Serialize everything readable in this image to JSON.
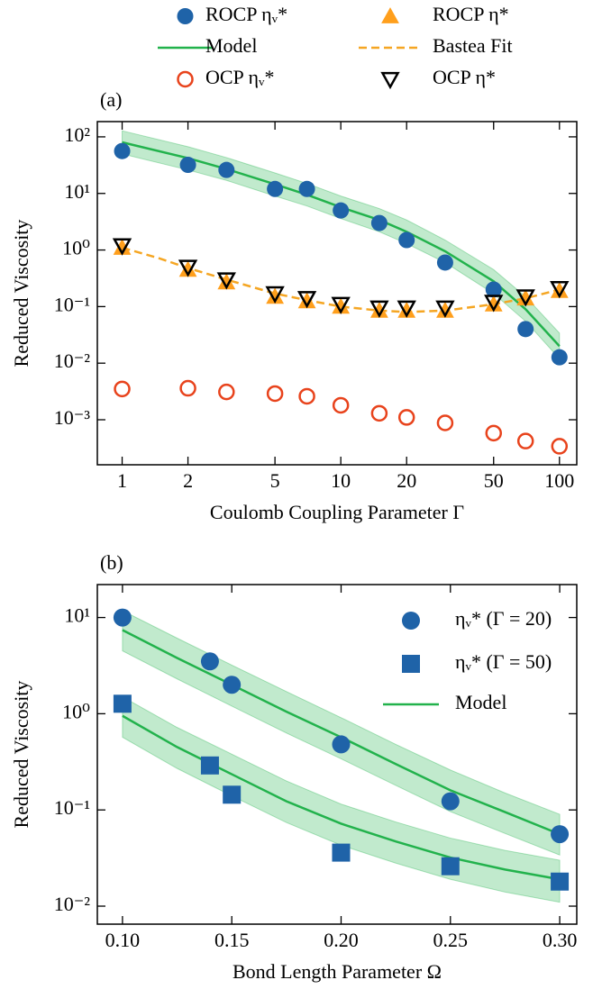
{
  "chart_data": [
    {
      "type": "scatter",
      "annotation": "(a)",
      "xlabel": "Coulomb Coupling Parameter Γ",
      "ylabel": "Reduced Viscosity",
      "xscale": "log",
      "yscale": "log",
      "xlim": [
        0.77,
        120
      ],
      "ylim": [
        0.00016,
        186
      ],
      "xticks": [
        1,
        2,
        5,
        10,
        20,
        50,
        100
      ],
      "yticks": [
        {
          "value": 0.001,
          "label": "10⁻³"
        },
        {
          "value": 0.01,
          "label": "10⁻²"
        },
        {
          "value": 0.1,
          "label": "10⁻¹"
        },
        {
          "value": 1,
          "label": "10⁰"
        },
        {
          "value": 10,
          "label": "10¹"
        },
        {
          "value": 100,
          "label": "10²"
        }
      ],
      "legend": "above",
      "grid": false,
      "series": [
        {
          "name": "ROCP ηᵥ*",
          "color": "#1f63a8",
          "marker": "circle",
          "line": "none",
          "x": [
            1,
            2,
            3,
            5,
            7,
            10,
            15,
            20,
            30,
            50,
            70,
            100
          ],
          "values": [
            56,
            32,
            26,
            12,
            12,
            5,
            3,
            1.5,
            0.6,
            0.2,
            0.04,
            0.0127
          ]
        },
        {
          "name": "Model",
          "color": "#22b24c",
          "marker": "none",
          "line": "solid",
          "x": [
            1,
            2,
            3,
            5,
            7,
            10,
            15,
            20,
            30,
            50,
            70,
            100
          ],
          "values": [
            80,
            42,
            27,
            14.5,
            9.5,
            5.7,
            3.4,
            2.1,
            0.95,
            0.28,
            0.09,
            0.02
          ],
          "lower": [
            50,
            26,
            17,
            9,
            6,
            3.6,
            2.1,
            1.3,
            0.6,
            0.17,
            0.055,
            0.012
          ],
          "upper": [
            128,
            67,
            43,
            23,
            15,
            9,
            5.4,
            3.4,
            1.5,
            0.45,
            0.15,
            0.034
          ]
        },
        {
          "name": "OCP ηᵥ*",
          "color": "#e8431c",
          "marker": "circle-open",
          "line": "none",
          "x": [
            1,
            2,
            3,
            5,
            7,
            10,
            15,
            20,
            30,
            50,
            70,
            100
          ],
          "values": [
            0.0035,
            0.0036,
            0.0031,
            0.0029,
            0.0026,
            0.0018,
            0.0013,
            0.0011,
            0.00088,
            0.00058,
            0.00042,
            0.00034
          ]
        },
        {
          "name": "ROCP η*",
          "color": "#ff9f1c",
          "marker": "triangle-up",
          "line": "none",
          "x": [
            1,
            2,
            3,
            5,
            7,
            10,
            15,
            20,
            30,
            50,
            70,
            100
          ],
          "values": [
            1.1,
            0.45,
            0.27,
            0.15,
            0.125,
            0.1,
            0.085,
            0.085,
            0.085,
            0.11,
            0.14,
            0.19
          ]
        },
        {
          "name": "Bastea Fit",
          "color": "#f5a623",
          "marker": "none",
          "line": "dashed",
          "x": [
            1,
            1.5,
            2,
            3,
            5,
            7,
            10,
            15,
            20,
            30,
            50,
            70,
            100
          ],
          "values": [
            1.1,
            0.7,
            0.48,
            0.3,
            0.17,
            0.13,
            0.1,
            0.085,
            0.08,
            0.085,
            0.11,
            0.14,
            0.2
          ]
        },
        {
          "name": "OCP η*",
          "color": "#000000",
          "marker": "triangle-down-open",
          "line": "none",
          "x": [
            1,
            2,
            3,
            5,
            7,
            10,
            15,
            20,
            30,
            50,
            70,
            100
          ],
          "values": [
            1.2,
            0.5,
            0.3,
            0.17,
            0.14,
            0.11,
            0.095,
            0.095,
            0.095,
            0.12,
            0.15,
            0.21
          ]
        }
      ]
    },
    {
      "type": "scatter",
      "annotation": "(b)",
      "xlabel": "Bond Length Parameter Ω",
      "ylabel": "Reduced Viscosity",
      "xscale": "linear",
      "yscale": "log",
      "xlim": [
        0.0885,
        0.3078
      ],
      "ylim": [
        0.0065,
        22
      ],
      "xticks": [
        {
          "value": 0.1,
          "label": "0.10"
        },
        0.15,
        {
          "value": 0.2,
          "label": "0.20"
        },
        0.25,
        {
          "value": 0.3,
          "label": "0.30"
        }
      ],
      "yticks": [
        {
          "value": 0.01,
          "label": "10⁻²"
        },
        {
          "value": 0.1,
          "label": "10⁻¹"
        },
        {
          "value": 1,
          "label": "10⁰"
        },
        {
          "value": 10,
          "label": "10¹"
        }
      ],
      "legend": "upper right",
      "grid": false,
      "series": [
        {
          "name": "ηᵥ* (Γ = 20)",
          "color": "#1f63a8",
          "marker": "circle",
          "line": "none",
          "x": [
            0.1,
            0.14,
            0.15,
            0.2,
            0.25,
            0.3
          ],
          "values": [
            10,
            3.5,
            2.0,
            0.48,
            0.123,
            0.056
          ]
        },
        {
          "name": "ηᵥ* (Γ = 50)",
          "color": "#1f63a8",
          "marker": "square",
          "line": "none",
          "x": [
            0.1,
            0.14,
            0.15,
            0.2,
            0.25,
            0.3
          ],
          "values": [
            1.27,
            0.29,
            0.144,
            0.036,
            0.026,
            0.018
          ]
        },
        {
          "name": "Model",
          "color": "#22b24c",
          "marker": "none",
          "line": "solid",
          "x": [
            0.1,
            0.125,
            0.15,
            0.175,
            0.2,
            0.225,
            0.25,
            0.275,
            0.3
          ],
          "values": [
            7.4,
            3.8,
            2.0,
            1.05,
            0.57,
            0.3,
            0.16,
            0.095,
            0.056
          ],
          "lower": [
            4.5,
            2.3,
            1.2,
            0.63,
            0.34,
            0.18,
            0.096,
            0.057,
            0.034
          ],
          "upper": [
            11.8,
            6.1,
            3.2,
            1.7,
            0.91,
            0.48,
            0.26,
            0.15,
            0.09
          ]
        },
        {
          "color": "#22b24c",
          "marker": "none",
          "line": "solid",
          "x": [
            0.1,
            0.125,
            0.15,
            0.175,
            0.2,
            0.225,
            0.25,
            0.275,
            0.3
          ],
          "values": [
            0.95,
            0.45,
            0.235,
            0.123,
            0.072,
            0.047,
            0.032,
            0.024,
            0.019
          ],
          "lower": [
            0.57,
            0.27,
            0.14,
            0.074,
            0.043,
            0.028,
            0.019,
            0.014,
            0.011
          ],
          "upper": [
            1.5,
            0.72,
            0.38,
            0.2,
            0.115,
            0.075,
            0.051,
            0.038,
            0.03
          ]
        }
      ]
    }
  ]
}
